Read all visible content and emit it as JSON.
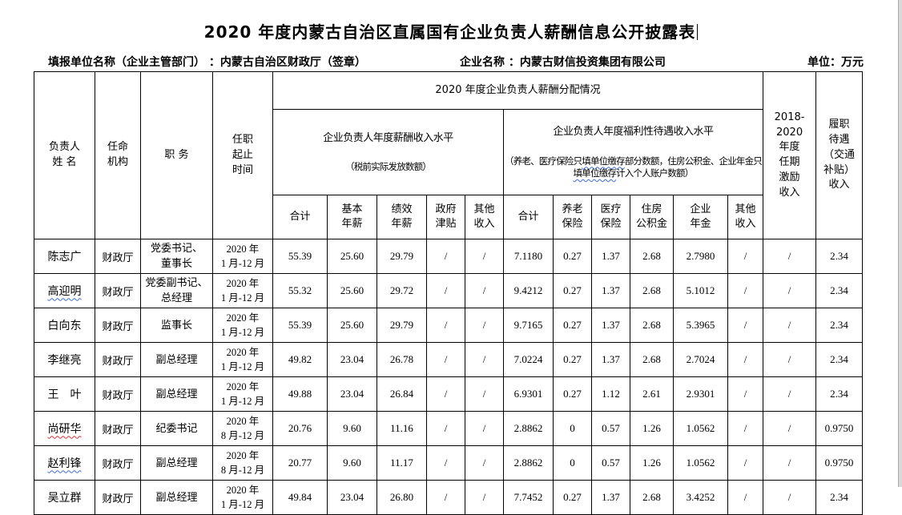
{
  "page": {
    "title": "2020 年度内蒙古自治区直属国有企业负责人薪酬信息公开披露表",
    "filing_label": "填报单位名称（企业主管部门） ：内蒙古自治区财政厅（签章）",
    "company_label": "企业名称 ：内蒙古财信投资集团有限公司",
    "unit_label": "单位：万元"
  },
  "table": {
    "col_headers": {
      "name": "负责人\n姓 名",
      "agency": "任命\n机构",
      "position": "职  务",
      "term": "任职\n起止\n时间",
      "group": "2020 年度企业负责人薪酬分配情况",
      "tenure_incentive": "2018-2020\n年度\n任期\n激励\n收入",
      "duty_allowance": "履职\n待遇\n（交通\n补贴）\n收入"
    },
    "salary_group": {
      "title": "企业负责人年度薪酬收入水平",
      "subtitle": "（税前实际发放数额）",
      "columns": [
        "合计",
        "基本\n年薪",
        "绩效\n年薪",
        "政府\n津贴",
        "其他\n收入"
      ]
    },
    "welfare_group": {
      "title": "企业负责人年度福利性待遇收入水平",
      "subtitle_parts": [
        {
          "t": "（养老、医疗保险只"
        },
        {
          "t": "填单位缴存",
          "m": "blue"
        },
        {
          "t": "部分数额，住房公积金、企"
        },
        {
          "t": "业年金只"
        },
        {
          "t": "填单位缴存",
          "m": "blue"
        },
        {
          "t": "计入个人账户数额）"
        }
      ],
      "columns": [
        "合计",
        "养老\n保险",
        "医疗\n保险",
        "住房\n公积金",
        "企业\n年金",
        "其他\n收入"
      ]
    },
    "rows": [
      {
        "name": "陈志广",
        "agency": "财政厅",
        "position": "党委书记、\n董事长",
        "term": "2020 年\n1 月-12 月",
        "values": [
          "55.39",
          "25.60",
          "29.79",
          "/",
          "/",
          "7.1180",
          "0.27",
          "1.37",
          "2.68",
          "2.7980",
          "/",
          "/",
          "2.34"
        ]
      },
      {
        "name": "高迎明",
        "name_mark": "blue",
        "agency": "财政厅",
        "position": "党委副书记、\n总经理",
        "term": "2020 年\n1 月-12 月",
        "values": [
          "55.32",
          "25.60",
          "29.72",
          "/",
          "/",
          "9.4212",
          "0.27",
          "1.37",
          "2.68",
          "5.1012",
          "/",
          "/",
          "2.34"
        ]
      },
      {
        "name": "白向东",
        "agency": "财政厅",
        "position": "监事长",
        "term": "2020 年\n1 月-12 月",
        "values": [
          "55.39",
          "25.60",
          "29.79",
          "/",
          "/",
          "9.7165",
          "0.27",
          "1.37",
          "2.68",
          "5.3965",
          "/",
          "/",
          "2.34"
        ]
      },
      {
        "name": "李继亮",
        "agency": "财政厅",
        "position": "副总经理",
        "term": "2020 年\n1 月-12 月",
        "values": [
          "49.82",
          "23.04",
          "26.78",
          "/",
          "/",
          "7.0224",
          "0.27",
          "1.37",
          "2.68",
          "2.7024",
          "/",
          "/",
          "2.34"
        ]
      },
      {
        "name": "王　叶",
        "agency": "财政厅",
        "position": "副总经理",
        "term": "2020 年\n1 月-12 月",
        "values": [
          "49.88",
          "23.04",
          "26.84",
          "/",
          "/",
          "6.9301",
          "0.27",
          "1.12",
          "2.61",
          "2.9301",
          "/",
          "/",
          "2.34"
        ]
      },
      {
        "name": "尚研华",
        "name_mark": "red",
        "agency": "财政厅",
        "position": "纪委书记",
        "term": "2020 年\n8 月-12 月",
        "values": [
          "20.76",
          "9.60",
          "11.16",
          "/",
          "/",
          "2.8862",
          "0",
          "0.57",
          "1.26",
          "1.0562",
          "/",
          "/",
          "0.9750"
        ]
      },
      {
        "name": "赵利锋",
        "name_mark": "blue",
        "agency": "财政厅",
        "position": "副总经理",
        "term": "2020 年\n8 月-12 月",
        "values": [
          "20.77",
          "9.60",
          "11.17",
          "/",
          "/",
          "2.8862",
          "0",
          "0.57",
          "1.26",
          "1.0562",
          "/",
          "/",
          "0.9750"
        ]
      },
      {
        "name": "吴立群",
        "agency": "财政厅",
        "position": "副总经理",
        "term": "2020 年\n1 月-12 月",
        "values": [
          "49.84",
          "23.04",
          "26.80",
          "/",
          "/",
          "7.7452",
          "0.27",
          "1.37",
          "2.68",
          "3.4252",
          "/",
          "/",
          "2.34"
        ]
      }
    ]
  }
}
